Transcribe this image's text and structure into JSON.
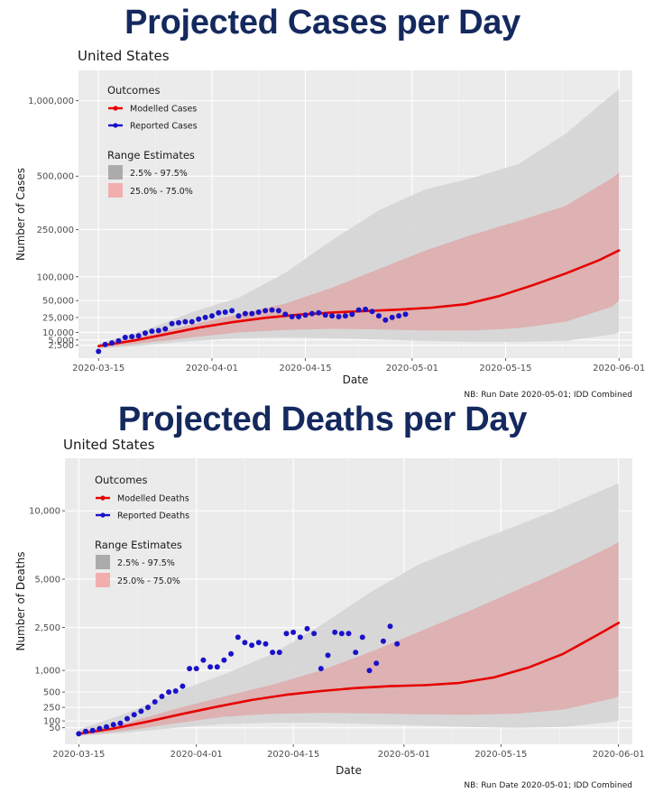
{
  "headings": {
    "cases": "Projected Cases per Day",
    "deaths": "Projected Deaths per Day"
  },
  "colors": {
    "heading": "#14295e",
    "modelled": "#e60000",
    "reported": "#1a12c8",
    "band_95": "#d6d6d6",
    "band_50": "#deafb0",
    "panel": "#ebebeb"
  },
  "chart_data": [
    {
      "type": "line",
      "subtitle": "United States",
      "xlabel": "Date",
      "ylabel": "Number of Cases",
      "note": "NB: Run Date 2020-05-01; IDD Combined",
      "x_ticks": [
        "2020-03-15",
        "2020-04-01",
        "2020-04-15",
        "2020-05-01",
        "2020-05-15",
        "2020-06-01"
      ],
      "y_scale": "sqrt",
      "y_ticks": [
        {
          "value": 2500,
          "label": "2,500"
        },
        {
          "value": 5000,
          "label": "5,000"
        },
        {
          "value": 10000,
          "label": "10,000"
        },
        {
          "value": 25000,
          "label": "25,000"
        },
        {
          "value": 50000,
          "label": "50,000"
        },
        {
          "value": 100000,
          "label": "100,000"
        },
        {
          "value": 250000,
          "label": "250,000"
        },
        {
          "value": 500000,
          "label": "500,000"
        },
        {
          "value": 1000000,
          "label": "1,000,000"
        }
      ],
      "ylim": [
        0,
        1250000
      ],
      "xlim": [
        "2020-03-12",
        "2020-06-03"
      ],
      "legend": {
        "position": "top-left",
        "outcomes_title": "Outcomes",
        "modelled_label": "Modelled Cases",
        "reported_label": "Reported Cases",
        "range_title": "Range Estimates",
        "range_95_label": "2.5% - 97.5%",
        "range_50_label": "25.0% - 75.0%"
      },
      "modelled": [
        [
          "2020-03-15",
          2200
        ],
        [
          "2020-03-20",
          4500
        ],
        [
          "2020-03-25",
          8500
        ],
        [
          "2020-03-30",
          14000
        ],
        [
          "2020-04-04",
          19500
        ],
        [
          "2020-04-09",
          24500
        ],
        [
          "2020-04-14",
          28500
        ],
        [
          "2020-04-19",
          31500
        ],
        [
          "2020-04-24",
          33500
        ],
        [
          "2020-04-29",
          35500
        ],
        [
          "2020-05-04",
          38500
        ],
        [
          "2020-05-09",
          44000
        ],
        [
          "2020-05-14",
          58000
        ],
        [
          "2020-05-19",
          80000
        ],
        [
          "2020-05-24",
          108000
        ],
        [
          "2020-05-29",
          145000
        ],
        [
          "2020-06-01",
          175000
        ]
      ],
      "band_50": [
        [
          "2020-03-15",
          1600,
          2800
        ],
        [
          "2020-03-22",
          3500,
          7500
        ],
        [
          "2020-03-29",
          6500,
          17000
        ],
        [
          "2020-04-05",
          10000,
          29000
        ],
        [
          "2020-04-12",
          12000,
          45000
        ],
        [
          "2020-04-19",
          13000,
          75000
        ],
        [
          "2020-04-26",
          12500,
          120000
        ],
        [
          "2020-05-03",
          11500,
          175000
        ],
        [
          "2020-05-10",
          11500,
          230000
        ],
        [
          "2020-05-17",
          13500,
          285000
        ],
        [
          "2020-05-24",
          20000,
          350000
        ],
        [
          "2020-05-31",
          40000,
          490000
        ],
        [
          "2020-06-01",
          50000,
          520000
        ]
      ],
      "band_95": [
        [
          "2020-03-15",
          1300,
          3200
        ],
        [
          "2020-03-22",
          2500,
          12000
        ],
        [
          "2020-03-29",
          4500,
          32000
        ],
        [
          "2020-04-05",
          6000,
          55000
        ],
        [
          "2020-04-12",
          6500,
          110000
        ],
        [
          "2020-04-19",
          6000,
          210000
        ],
        [
          "2020-04-26",
          5200,
          330000
        ],
        [
          "2020-05-03",
          4500,
          430000
        ],
        [
          "2020-05-10",
          4000,
          490000
        ],
        [
          "2020-05-17",
          4000,
          570000
        ],
        [
          "2020-05-24",
          4500,
          760000
        ],
        [
          "2020-05-31",
          8500,
          1050000
        ],
        [
          "2020-06-01",
          10000,
          1090000
        ]
      ],
      "reported": [
        [
          "2020-03-15",
          700
        ],
        [
          "2020-03-16",
          2800
        ],
        [
          "2020-03-17",
          3500
        ],
        [
          "2020-03-18",
          4500
        ],
        [
          "2020-03-19",
          6500
        ],
        [
          "2020-03-20",
          7000
        ],
        [
          "2020-03-21",
          7500
        ],
        [
          "2020-03-22",
          9500
        ],
        [
          "2020-03-23",
          11000
        ],
        [
          "2020-03-24",
          11500
        ],
        [
          "2020-03-25",
          13000
        ],
        [
          "2020-03-26",
          18000
        ],
        [
          "2020-03-27",
          19000
        ],
        [
          "2020-03-28",
          20000
        ],
        [
          "2020-03-29",
          20000
        ],
        [
          "2020-03-30",
          23000
        ],
        [
          "2020-03-31",
          25000
        ],
        [
          "2020-04-01",
          27000
        ],
        [
          "2020-04-02",
          31000
        ],
        [
          "2020-04-03",
          32000
        ],
        [
          "2020-04-04",
          34000
        ],
        [
          "2020-04-05",
          27000
        ],
        [
          "2020-04-06",
          30000
        ],
        [
          "2020-04-07",
          30000
        ],
        [
          "2020-04-08",
          32000
        ],
        [
          "2020-04-09",
          34000
        ],
        [
          "2020-04-10",
          35000
        ],
        [
          "2020-04-11",
          34000
        ],
        [
          "2020-04-12",
          29000
        ],
        [
          "2020-04-13",
          26000
        ],
        [
          "2020-04-14",
          26000
        ],
        [
          "2020-04-15",
          28000
        ],
        [
          "2020-04-16",
          30000
        ],
        [
          "2020-04-17",
          31000
        ],
        [
          "2020-04-18",
          28000
        ],
        [
          "2020-04-19",
          27000
        ],
        [
          "2020-04-20",
          26000
        ],
        [
          "2020-04-21",
          27000
        ],
        [
          "2020-04-22",
          29000
        ],
        [
          "2020-04-23",
          35000
        ],
        [
          "2020-04-24",
          36000
        ],
        [
          "2020-04-25",
          33000
        ],
        [
          "2020-04-26",
          27000
        ],
        [
          "2020-04-27",
          22000
        ],
        [
          "2020-04-28",
          25000
        ],
        [
          "2020-04-29",
          27000
        ],
        [
          "2020-04-30",
          29000
        ]
      ]
    },
    {
      "type": "line",
      "subtitle": "United States",
      "xlabel": "Date",
      "ylabel": "Number of Deaths",
      "note": "NB: Run Date 2020-05-01; IDD Combined",
      "x_ticks": [
        "2020-03-15",
        "2020-04-01",
        "2020-04-15",
        "2020-05-01",
        "2020-05-15",
        "2020-06-01"
      ],
      "y_scale": "sqrt",
      "y_ticks": [
        {
          "value": 50,
          "label": "50"
        },
        {
          "value": 100,
          "label": "100"
        },
        {
          "value": 250,
          "label": "250"
        },
        {
          "value": 500,
          "label": "500"
        },
        {
          "value": 1000,
          "label": "1,000"
        },
        {
          "value": 2500,
          "label": "2,500"
        },
        {
          "value": 5000,
          "label": "5,000"
        },
        {
          "value": 10000,
          "label": "10,000"
        }
      ],
      "ylim": [
        0,
        15000
      ],
      "xlim": [
        "2020-03-13",
        "2020-06-03"
      ],
      "legend": {
        "position": "top-left",
        "outcomes_title": "Outcomes",
        "modelled_label": "Modelled Deaths",
        "reported_label": "Reported Deaths",
        "range_title": "Range Estimates",
        "range_95_label": "2.5% - 97.5%",
        "range_50_label": "25.0% - 75.0%"
      },
      "modelled": [
        [
          "2020-03-15",
          20
        ],
        [
          "2020-03-20",
          45
        ],
        [
          "2020-03-25",
          95
        ],
        [
          "2020-03-30",
          170
        ],
        [
          "2020-04-04",
          260
        ],
        [
          "2020-04-09",
          360
        ],
        [
          "2020-04-14",
          450
        ],
        [
          "2020-04-19",
          520
        ],
        [
          "2020-04-24",
          580
        ],
        [
          "2020-04-29",
          620
        ],
        [
          "2020-05-04",
          640
        ],
        [
          "2020-05-09",
          690
        ],
        [
          "2020-05-14",
          820
        ],
        [
          "2020-05-19",
          1080
        ],
        [
          "2020-05-24",
          1500
        ],
        [
          "2020-05-29",
          2200
        ],
        [
          "2020-06-01",
          2700
        ]
      ],
      "band_50": [
        [
          "2020-03-15",
          15,
          28
        ],
        [
          "2020-03-22",
          35,
          85
        ],
        [
          "2020-03-29",
          80,
          230
        ],
        [
          "2020-04-05",
          140,
          420
        ],
        [
          "2020-04-12",
          170,
          650
        ],
        [
          "2020-04-19",
          180,
          1000
        ],
        [
          "2020-04-26",
          175,
          1550
        ],
        [
          "2020-05-03",
          165,
          2300
        ],
        [
          "2020-05-10",
          160,
          3200
        ],
        [
          "2020-05-17",
          170,
          4300
        ],
        [
          "2020-05-24",
          220,
          5600
        ],
        [
          "2020-05-31",
          380,
          7200
        ],
        [
          "2020-06-01",
          420,
          7500
        ]
      ],
      "band_95": [
        [
          "2020-03-15",
          12,
          40
        ],
        [
          "2020-03-22",
          25,
          180
        ],
        [
          "2020-03-29",
          50,
          500
        ],
        [
          "2020-04-05",
          75,
          900
        ],
        [
          "2020-04-12",
          85,
          1500
        ],
        [
          "2020-04-19",
          85,
          2600
        ],
        [
          "2020-04-26",
          75,
          4200
        ],
        [
          "2020-05-03",
          65,
          5900
        ],
        [
          "2020-05-10",
          55,
          7300
        ],
        [
          "2020-05-17",
          50,
          8700
        ],
        [
          "2020-05-24",
          55,
          10300
        ],
        [
          "2020-05-31",
          90,
          12200
        ],
        [
          "2020-06-01",
          100,
          12500
        ]
      ],
      "reported": [
        [
          "2020-03-15",
          20
        ],
        [
          "2020-03-16",
          30
        ],
        [
          "2020-03-17",
          35
        ],
        [
          "2020-03-18",
          45
        ],
        [
          "2020-03-19",
          55
        ],
        [
          "2020-03-20",
          70
        ],
        [
          "2020-03-21",
          80
        ],
        [
          "2020-03-22",
          120
        ],
        [
          "2020-03-23",
          160
        ],
        [
          "2020-03-24",
          200
        ],
        [
          "2020-03-25",
          250
        ],
        [
          "2020-03-26",
          330
        ],
        [
          "2020-03-27",
          420
        ],
        [
          "2020-03-28",
          500
        ],
        [
          "2020-03-29",
          520
        ],
        [
          "2020-03-30",
          620
        ],
        [
          "2020-03-31",
          1050
        ],
        [
          "2020-04-01",
          1050
        ],
        [
          "2020-04-02",
          1300
        ],
        [
          "2020-04-03",
          1100
        ],
        [
          "2020-04-04",
          1100
        ],
        [
          "2020-04-05",
          1300
        ],
        [
          "2020-04-06",
          1500
        ],
        [
          "2020-04-07",
          2100
        ],
        [
          "2020-04-08",
          1900
        ],
        [
          "2020-04-09",
          1800
        ],
        [
          "2020-04-10",
          1900
        ],
        [
          "2020-04-11",
          1850
        ],
        [
          "2020-04-12",
          1550
        ],
        [
          "2020-04-13",
          1550
        ],
        [
          "2020-04-14",
          2250
        ],
        [
          "2020-04-15",
          2300
        ],
        [
          "2020-04-16",
          2100
        ],
        [
          "2020-04-17",
          2450
        ],
        [
          "2020-04-18",
          2250
        ],
        [
          "2020-04-19",
          1050
        ],
        [
          "2020-04-20",
          1450
        ],
        [
          "2020-04-21",
          2300
        ],
        [
          "2020-04-22",
          2250
        ],
        [
          "2020-04-23",
          2250
        ],
        [
          "2020-04-24",
          1550
        ],
        [
          "2020-04-25",
          2100
        ],
        [
          "2020-04-26",
          1000
        ],
        [
          "2020-04-27",
          1200
        ],
        [
          "2020-04-28",
          1950
        ],
        [
          "2020-04-29",
          2550
        ],
        [
          "2020-04-30",
          1850
        ]
      ]
    }
  ]
}
